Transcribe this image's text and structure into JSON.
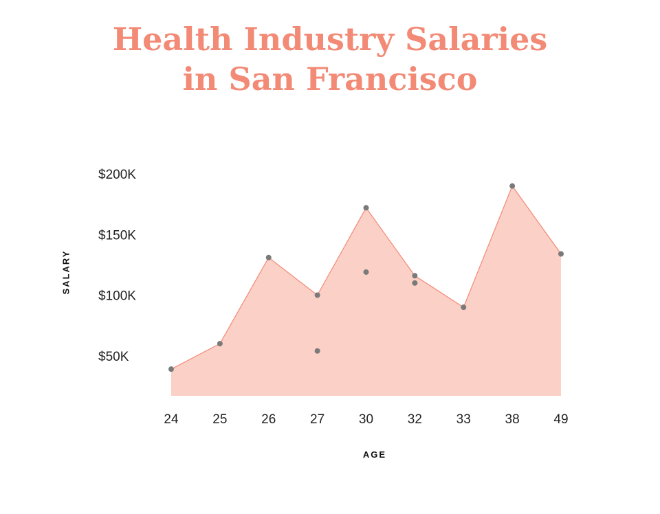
{
  "chart_data": {
    "type": "area",
    "title": "Health Industry Salaries in San Francisco",
    "title_lines": [
      "Health Industry Salaries",
      "in San Francisco"
    ],
    "xlabel": "AGE",
    "ylabel": "SALARY",
    "categories": [
      "24",
      "25",
      "26",
      "27",
      "30",
      "32",
      "33",
      "38",
      "49"
    ],
    "y_ticks": [
      {
        "value": 200000,
        "label": "$200K"
      },
      {
        "value": 150000,
        "label": "$150K"
      },
      {
        "value": 100000,
        "label": "$100K"
      },
      {
        "value": 50000,
        "label": "$50K"
      }
    ],
    "series": [
      {
        "values": [
          39000,
          60000,
          131000,
          100000,
          172000,
          116000,
          90000,
          190000,
          134000
        ]
      }
    ],
    "extra_points": [
      {
        "x": "27",
        "y": 54000
      },
      {
        "x": "30",
        "y": 119000
      },
      {
        "x": "32",
        "y": 110000
      }
    ],
    "ylim": [
      17000,
      200000
    ],
    "grid": false,
    "legend": "none",
    "colors": {
      "title": "#f28a76",
      "area_fill": "#fbd0c7",
      "area_line": "#f28a76",
      "point": "#7a7a7a"
    }
  }
}
